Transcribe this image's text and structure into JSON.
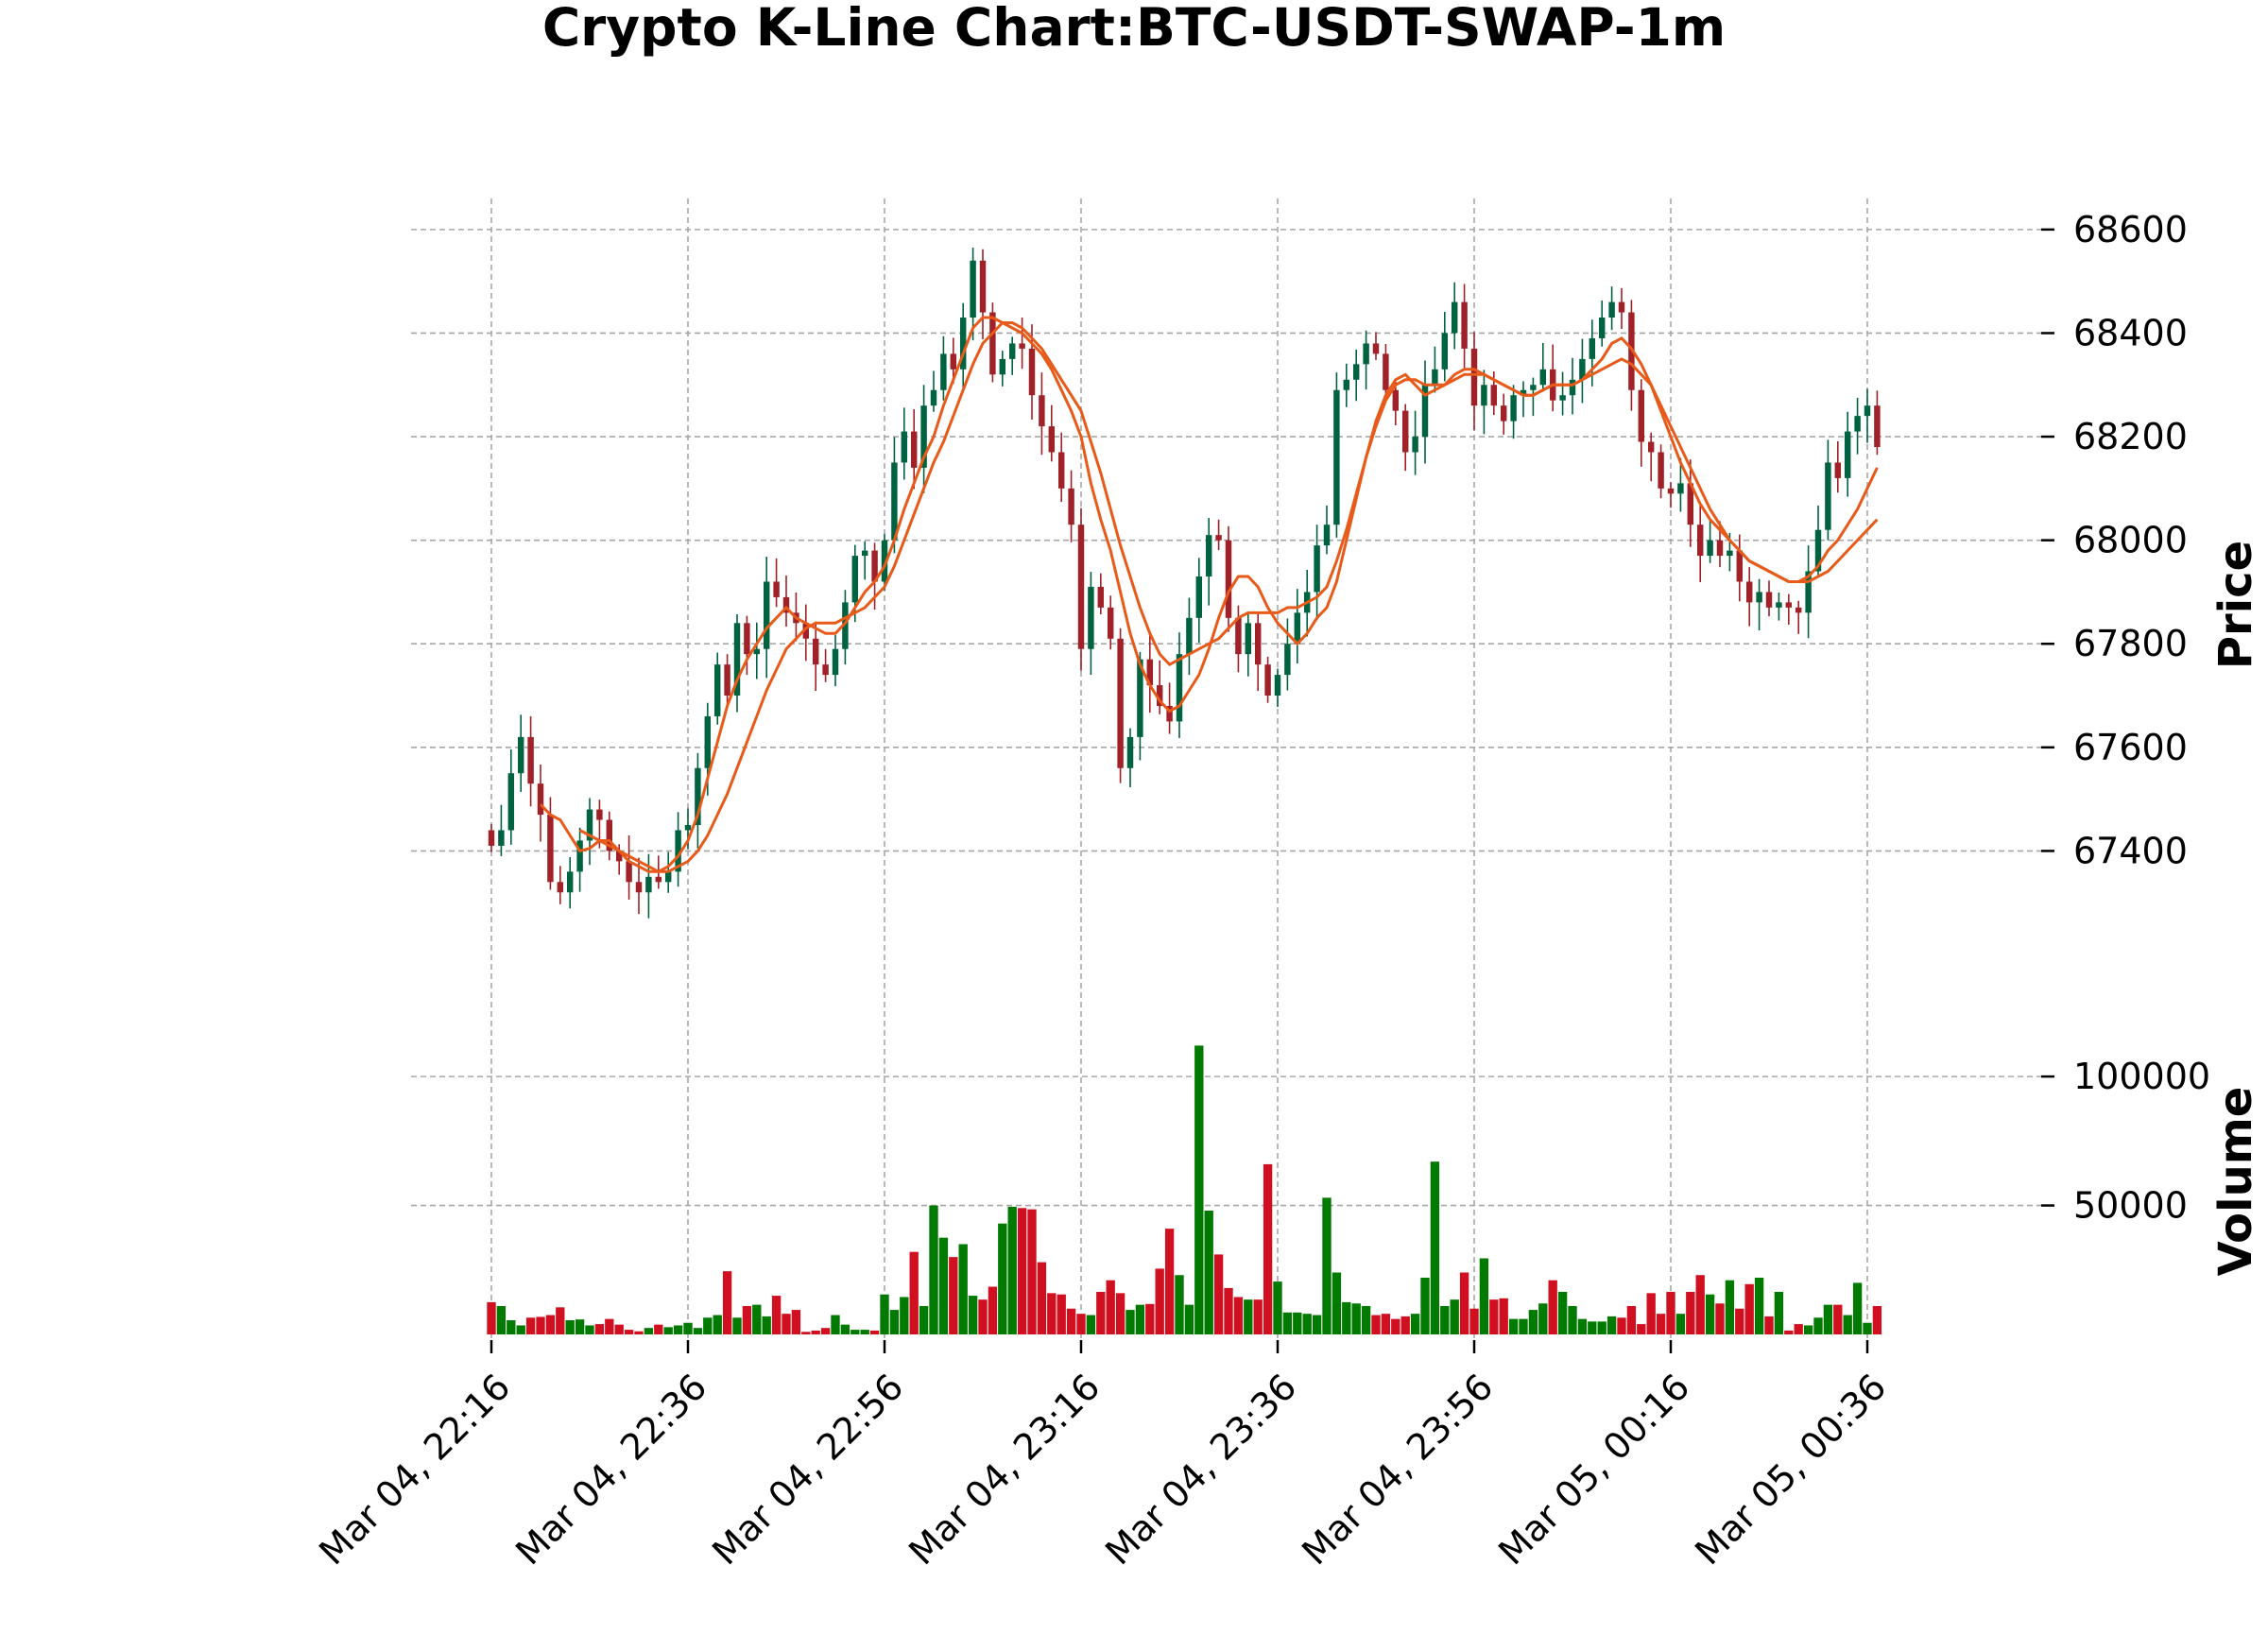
{
  "chart_data": {
    "type": "candlestick",
    "title": "Crypto K-Line Chart:BTC-USDT-SWAP-1m",
    "price_label": "Price",
    "volume_label": "Volume",
    "x_tick_labels": [
      "Mar 04, 22:16",
      "Mar 04, 22:36",
      "Mar 04, 22:56",
      "Mar 04, 23:16",
      "Mar 04, 23:36",
      "Mar 04, 23:56",
      "Mar 05, 00:16",
      "Mar 05, 00:36"
    ],
    "x_tick_index": [
      0,
      20,
      40,
      60,
      80,
      100,
      120,
      140
    ],
    "price_ticks": [
      "67400",
      "67600",
      "67800",
      "68000",
      "68200",
      "68400",
      "68600"
    ],
    "price_tick_values": [
      67400,
      67600,
      67800,
      68000,
      68200,
      68400,
      68600
    ],
    "price_range": [
      67200,
      68660
    ],
    "volume_ticks": [
      "50000",
      "100000"
    ],
    "volume_tick_values": [
      50000,
      100000
    ],
    "volume_range": [
      0,
      118000
    ],
    "grid": true,
    "colors": {
      "up": "#006340",
      "down": "#a02128",
      "vol_up": "#007a00",
      "vol_down": "#d01020",
      "ma": "#e85a1a",
      "grid": "#a6a6a6"
    },
    "close": [
      67410,
      67440,
      67550,
      67620,
      67530,
      67470,
      67340,
      67320,
      67360,
      67420,
      67480,
      67460,
      67400,
      67380,
      67340,
      67320,
      67350,
      67340,
      67360,
      67440,
      67450,
      67560,
      67660,
      67760,
      67700,
      67840,
      67780,
      67790,
      67920,
      67890,
      67860,
      67840,
      67810,
      67760,
      67740,
      67790,
      67880,
      67970,
      67980,
      67920,
      68000,
      68150,
      68210,
      68140,
      68260,
      68290,
      68360,
      68330,
      68430,
      68540,
      68440,
      68320,
      68350,
      68380,
      68370,
      68280,
      68220,
      68170,
      68100,
      68030,
      67790,
      67910,
      67870,
      67810,
      67560,
      67620,
      67770,
      67720,
      67680,
      67650,
      67780,
      67850,
      67930,
      68010,
      68000,
      67850,
      67780,
      67840,
      67760,
      67700,
      67740,
      67800,
      67860,
      67900,
      67990,
      68030,
      68290,
      68310,
      68340,
      68380,
      68360,
      68290,
      68250,
      68170,
      68200,
      68300,
      68330,
      68400,
      68460,
      68370,
      68260,
      68300,
      68260,
      68230,
      68280,
      68290,
      68300,
      68330,
      68270,
      68280,
      68310,
      68350,
      68390,
      68430,
      68460,
      68440,
      68290,
      68190,
      68170,
      68100,
      68090,
      68110,
      68030,
      67970,
      68000,
      67970,
      67980,
      67920,
      67880,
      67900,
      67870,
      67880,
      67870,
      67860,
      67940,
      68020,
      68150,
      68120,
      68210,
      68240,
      68260,
      68180
    ],
    "ma_fast": [
      null,
      null,
      null,
      null,
      null,
      67490,
      67470,
      67460,
      67430,
      67400,
      67405,
      67420,
      67420,
      67400,
      67380,
      67370,
      67360,
      67360,
      67370,
      67390,
      67420,
      67470,
      67540,
      67610,
      67680,
      67730,
      67770,
      67800,
      67830,
      67850,
      67870,
      67850,
      67840,
      67830,
      67820,
      67820,
      67840,
      67870,
      67900,
      67920,
      67950,
      68000,
      68060,
      68110,
      68160,
      68200,
      68260,
      68310,
      68360,
      68410,
      68430,
      68430,
      68420,
      68410,
      68400,
      68380,
      68360,
      68330,
      68290,
      68250,
      68200,
      68110,
      68040,
      67980,
      67900,
      67820,
      67760,
      67720,
      67690,
      67670,
      67680,
      67710,
      67740,
      67790,
      67850,
      67900,
      67930,
      67930,
      67910,
      67870,
      67840,
      67820,
      67800,
      67820,
      67850,
      67870,
      67920,
      68000,
      68080,
      68160,
      68230,
      68280,
      68310,
      68320,
      68300,
      68280,
      68290,
      68300,
      68320,
      68330,
      68330,
      68320,
      68310,
      68300,
      68290,
      68280,
      68280,
      68290,
      68300,
      68300,
      68300,
      68310,
      68330,
      68350,
      68380,
      68390,
      68370,
      68340,
      68300,
      68250,
      68200,
      68150,
      68110,
      68070,
      68040,
      68020,
      68000,
      67980,
      67960,
      67950,
      67940,
      67930,
      67920,
      67920,
      67930,
      67950,
      67980,
      68000,
      68030,
      68060,
      68100,
      68140
    ],
    "ma_slow": [
      null,
      null,
      null,
      null,
      null,
      null,
      null,
      null,
      null,
      67440,
      67430,
      67420,
      67410,
      67400,
      67390,
      67380,
      67370,
      67360,
      67360,
      67370,
      67380,
      67400,
      67430,
      67470,
      67510,
      67560,
      67610,
      67660,
      67710,
      67750,
      67790,
      67810,
      67830,
      67840,
      67840,
      67840,
      67850,
      67860,
      67870,
      67890,
      67910,
      67950,
      68000,
      68050,
      68100,
      68150,
      68190,
      68240,
      68290,
      68340,
      68380,
      68400,
      68420,
      68420,
      68410,
      68390,
      68370,
      68340,
      68310,
      68280,
      68250,
      68190,
      68130,
      68060,
      67990,
      67930,
      67870,
      67820,
      67780,
      67760,
      67770,
      67780,
      67790,
      67800,
      67810,
      67830,
      67850,
      67860,
      67860,
      67860,
      67860,
      67870,
      67870,
      67880,
      67890,
      67910,
      67960,
      68020,
      68090,
      68160,
      68220,
      68270,
      68300,
      68310,
      68310,
      68300,
      68300,
      68300,
      68310,
      68320,
      68320,
      68320,
      68310,
      68300,
      68290,
      68280,
      68280,
      68290,
      68300,
      68300,
      68300,
      68310,
      68320,
      68330,
      68340,
      68350,
      68340,
      68320,
      68300,
      68260,
      68220,
      68180,
      68140,
      68100,
      68060,
      68030,
      68000,
      67980,
      67960,
      67950,
      67940,
      67930,
      67920,
      67920,
      67920,
      67930,
      67940,
      67960,
      67980,
      68000,
      68020,
      68040
    ],
    "volume": [
      12500,
      11000,
      5500,
      3500,
      6500,
      6800,
      7500,
      10500,
      5500,
      5800,
      3500,
      4000,
      6000,
      3800,
      1800,
      1200,
      2500,
      3800,
      2800,
      3500,
      4500,
      2500,
      6500,
      7500,
      24500,
      6500,
      11000,
      11500,
      7000,
      15000,
      8000,
      9500,
      1000,
      1500,
      2500,
      7500,
      3800,
      1800,
      1800,
      1500,
      15500,
      9500,
      14500,
      32000,
      11000,
      50000,
      37500,
      30000,
      35000,
      15000,
      13500,
      18500,
      43000,
      49500,
      49000,
      48500,
      28000,
      16000,
      15500,
      10000,
      8000,
      7500,
      16500,
      21000,
      16000,
      9500,
      11500,
      11800,
      25500,
      41000,
      23000,
      11500,
      112000,
      48000,
      31000,
      18000,
      14500,
      13500,
      13500,
      66000,
      20500,
      8500,
      8500,
      8000,
      7500,
      53000,
      24000,
      12500,
      12000,
      11000,
      7500,
      8000,
      6000,
      7000,
      8000,
      22000,
      67000,
      11000,
      13500,
      24000,
      10000,
      29500,
      13500,
      14000,
      6000,
      6000,
      9500,
      12000,
      21000,
      16500,
      11000,
      6000,
      5000,
      5000,
      7000,
      6500,
      11000,
      4000,
      16000,
      8000,
      16500,
      8000,
      16500,
      23000,
      15500,
      12000,
      21000,
      10000,
      19500,
      22000,
      7000,
      16500,
      1500,
      4000,
      3500,
      6500,
      11500,
      11500,
      7500,
      20000,
      4500,
      11000
    ],
    "ma_period_fast": 5,
    "ma_period_slow": 10
  }
}
